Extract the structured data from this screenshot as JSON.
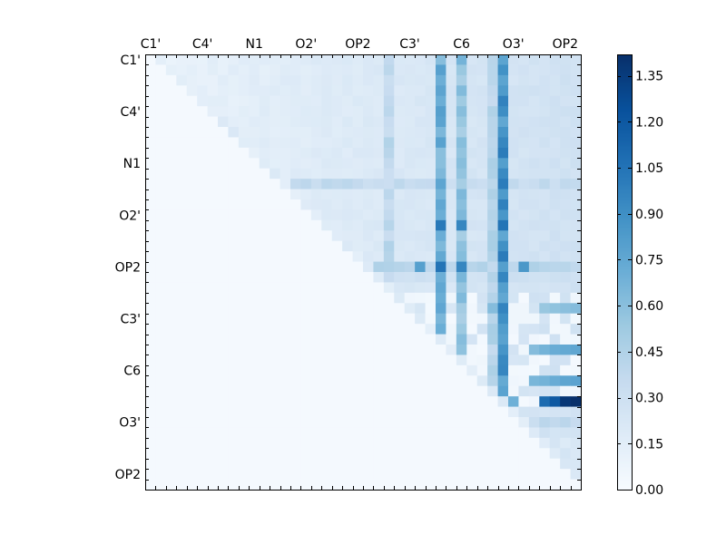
{
  "chart_data": {
    "type": "heatmap",
    "title": "",
    "xlabel": "",
    "ylabel": "",
    "n": 42,
    "x_tick_labels": [
      "C1'",
      "C4'",
      "N1",
      "O2'",
      "OP2",
      "C3'",
      "C6",
      "O3'",
      "OP2"
    ],
    "y_tick_labels": [
      "C1'",
      "C4'",
      "N1",
      "O2'",
      "OP2",
      "C3'",
      "C6",
      "O3'",
      "OP2"
    ],
    "colorbar": {
      "min": 0.0,
      "max": 1.42,
      "ticks": [
        "0.00",
        "0.15",
        "0.30",
        "0.45",
        "0.60",
        "0.75",
        "0.90",
        "1.05",
        "1.20",
        "1.35"
      ],
      "colormap": "Blues"
    },
    "background_value": 0.02,
    "highlight_columns": [
      {
        "col": 23,
        "value": 0.45
      },
      {
        "col": 28,
        "value": 0.82
      },
      {
        "col": 30,
        "value": 0.68
      },
      {
        "col": 33,
        "value": 0.5
      },
      {
        "col": 34,
        "value": 1.02
      }
    ],
    "highlight_rows": [
      {
        "row": 12,
        "value": 0.4
      },
      {
        "row": 20,
        "value": 0.46
      },
      {
        "row": 21,
        "value": 0.32
      },
      {
        "row": 35,
        "value": 0.42
      }
    ],
    "hot_cells": [
      {
        "row": 20,
        "col": 26,
        "value": 0.8
      },
      {
        "row": 20,
        "col": 28,
        "value": 1.05
      },
      {
        "row": 20,
        "col": 30,
        "value": 0.95
      },
      {
        "row": 20,
        "col": 36,
        "value": 0.85
      },
      {
        "row": 16,
        "col": 28,
        "value": 1.02
      },
      {
        "row": 16,
        "col": 30,
        "value": 0.95
      },
      {
        "row": 16,
        "col": 34,
        "value": 1.05
      },
      {
        "row": 33,
        "col": 38,
        "value": 1.1
      },
      {
        "row": 33,
        "col": 39,
        "value": 1.2
      },
      {
        "row": 33,
        "col": 40,
        "value": 1.38
      },
      {
        "row": 33,
        "col": 41,
        "value": 1.42
      },
      {
        "row": 33,
        "col": 35,
        "value": 0.7
      },
      {
        "row": 28,
        "col": 37,
        "value": 0.62
      },
      {
        "row": 28,
        "col": 38,
        "value": 0.68
      },
      {
        "row": 28,
        "col": 39,
        "value": 0.72
      },
      {
        "row": 28,
        "col": 40,
        "value": 0.74
      },
      {
        "row": 28,
        "col": 41,
        "value": 0.76
      },
      {
        "row": 31,
        "col": 37,
        "value": 0.66
      },
      {
        "row": 31,
        "col": 38,
        "value": 0.68
      },
      {
        "row": 31,
        "col": 39,
        "value": 0.72
      },
      {
        "row": 31,
        "col": 40,
        "value": 0.76
      },
      {
        "row": 31,
        "col": 41,
        "value": 0.78
      },
      {
        "row": 24,
        "col": 33,
        "value": 0.62
      },
      {
        "row": 24,
        "col": 38,
        "value": 0.55
      },
      {
        "row": 24,
        "col": 39,
        "value": 0.58
      },
      {
        "row": 24,
        "col": 40,
        "value": 0.6
      },
      {
        "row": 24,
        "col": 41,
        "value": 0.62
      },
      {
        "row": 26,
        "col": 34,
        "value": 0.82
      },
      {
        "row": 30,
        "col": 34,
        "value": 0.95
      }
    ]
  }
}
